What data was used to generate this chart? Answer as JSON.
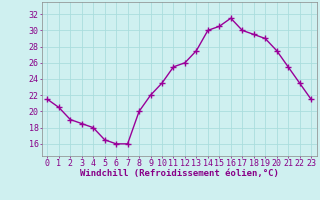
{
  "x": [
    0,
    1,
    2,
    3,
    4,
    5,
    6,
    7,
    8,
    9,
    10,
    11,
    12,
    13,
    14,
    15,
    16,
    17,
    18,
    19,
    20,
    21,
    22,
    23
  ],
  "y": [
    21.5,
    20.5,
    19.0,
    18.5,
    18.0,
    16.5,
    16.0,
    16.0,
    20.0,
    22.0,
    23.5,
    25.5,
    26.0,
    27.5,
    30.0,
    30.5,
    31.5,
    30.0,
    29.5,
    29.0,
    27.5,
    25.5,
    23.5,
    21.5
  ],
  "line_color": "#990099",
  "marker": "+",
  "markersize": 4,
  "linewidth": 1.0,
  "bg_color": "#cff0f0",
  "grid_color": "#aadddd",
  "xlabel": "Windchill (Refroidissement éolien,°C)",
  "xlabel_color": "#880088",
  "xlabel_fontsize": 6.5,
  "tick_color": "#880088",
  "tick_fontsize": 6,
  "ytick_values": [
    16,
    18,
    20,
    22,
    24,
    26,
    28,
    30,
    32
  ],
  "ylim": [
    14.5,
    33.5
  ],
  "xlim": [
    -0.5,
    23.5
  ]
}
